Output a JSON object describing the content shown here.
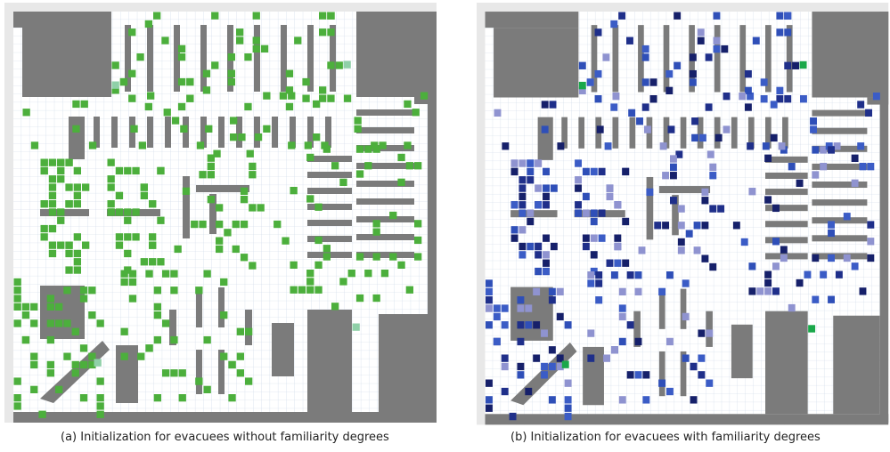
{
  "captions": [
    "(a) Initialization for evacuees without familiarity degrees",
    "(b) Initialization for evacuees with familiarity degrees"
  ]
}
